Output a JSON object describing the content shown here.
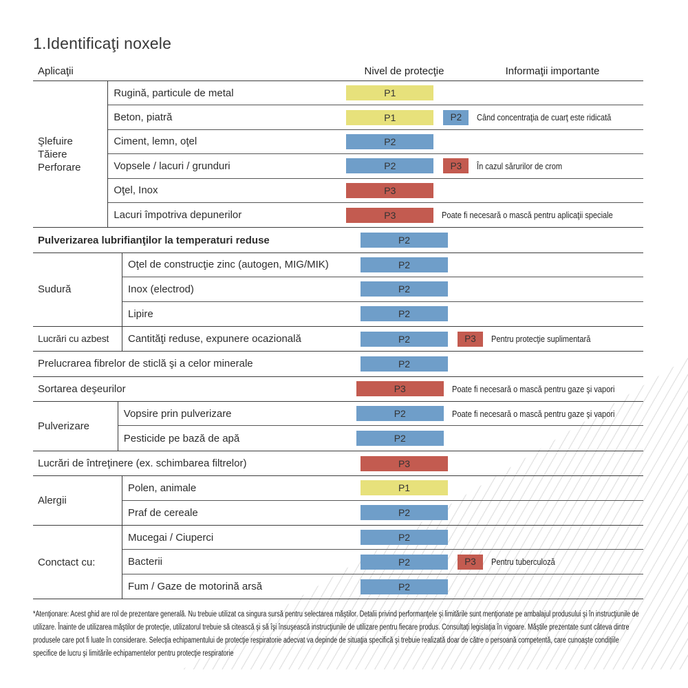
{
  "title": "1.Identificaţi noxele",
  "header": {
    "applications": "Aplicaţii",
    "protection": "Nivel de protecţie",
    "info": "Informaţii importante"
  },
  "colors": {
    "p1_yellow": "#e7e17b",
    "p2_blue": "#6f9ec9",
    "p3_red": "#c35b50"
  },
  "groups": [
    {
      "category": "Şlefuire\nTăiere\nPerforare"
    },
    {
      "category": "Sudură"
    },
    {
      "category": "Lucrări cu azbest"
    },
    {
      "category": "Pulverizare"
    },
    {
      "category": "Alergii"
    },
    {
      "category": "Conctact cu:"
    }
  ],
  "rows": [
    {
      "label": "Rugină, particule de metal",
      "badge": {
        "level": "P1",
        "label": "P1"
      }
    },
    {
      "label": "Beton, piatră",
      "badge": {
        "level": "P1",
        "label": "P1"
      },
      "badge2": {
        "level": "P2",
        "label": "P2"
      },
      "info": "Când concentraţia de cuarţ este ridicată"
    },
    {
      "label": "Ciment, lemn, oţel",
      "badge": {
        "level": "P2",
        "label": "P2"
      }
    },
    {
      "label": "Vopsele / lacuri / grunduri",
      "badge": {
        "level": "P2",
        "label": "P2"
      },
      "badge2": {
        "level": "P3",
        "label": "P3"
      },
      "info": "În cazul sărurilor de crom"
    },
    {
      "label": "Oţel, Inox",
      "badge": {
        "level": "P3",
        "label": "P3"
      }
    },
    {
      "label": "Lacuri împotriva depunerilor",
      "badge": {
        "level": "P3",
        "label": "P3"
      },
      "info": "Poate fi necesară o mască pentru aplicaţii speciale"
    },
    {
      "label": "Pulverizarea lubrifianţilor la temperaturi reduse",
      "badge": {
        "level": "P2",
        "label": "P2"
      }
    },
    {
      "label": "Oţel de construcţie zinc (autogen, MIG/MIK)",
      "badge": {
        "level": "P2",
        "label": "P2"
      }
    },
    {
      "label": "Inox (electrod)",
      "badge": {
        "level": "P2",
        "label": "P2"
      }
    },
    {
      "label": "Lipire",
      "badge": {
        "level": "P2",
        "label": "P2"
      }
    },
    {
      "label": "Cantităţi reduse, expunere ocazională",
      "badge": {
        "level": "P2",
        "label": "P2"
      },
      "badge2": {
        "level": "P3",
        "label": "P3"
      },
      "info": "Pentru protecţie suplimentară"
    },
    {
      "label": "Prelucrarea fibrelor de sticlă şi a celor minerale",
      "badge": {
        "level": "P2",
        "label": "P2"
      }
    },
    {
      "label": "Sortarea deşeurilor",
      "badge": {
        "level": "P3",
        "label": "P3"
      },
      "info": "Poate fi necesară o mască pentru gaze şi vapori"
    },
    {
      "label": "Vopsire prin pulverizare",
      "badge": {
        "level": "P2",
        "label": "P2"
      },
      "info": "Poate fi necesară o mască pentru gaze şi vapori"
    },
    {
      "label": "Pesticide pe bază de apă",
      "badge": {
        "level": "P2",
        "label": "P2"
      }
    },
    {
      "label": "Lucrări de întreţinere (ex. schimbarea filtrelor)",
      "badge": {
        "level": "P3",
        "label": "P3"
      }
    },
    {
      "label": "Polen, animale",
      "badge": {
        "level": "P1",
        "label": "P1"
      }
    },
    {
      "label": "Praf de cereale",
      "badge": {
        "level": "P2",
        "label": "P2"
      }
    },
    {
      "label": "Mucegai / Ciuperci",
      "badge": {
        "level": "P2",
        "label": "P2"
      }
    },
    {
      "label": "Bacterii",
      "badge": {
        "level": "P2",
        "label": "P2"
      },
      "badge2": {
        "level": "P3",
        "label": "P3"
      },
      "info": "Pentru tuberculoză"
    },
    {
      "label": "Fum / Gaze de motorină arsă",
      "badge": {
        "level": "P2",
        "label": "P2"
      }
    }
  ],
  "footnote": "*Atenţionare: Acest ghid are rol de prezentare generală. Nu trebuie utilizat ca singura sursă pentru selectarea măştilor. Detalii privind performanţele şi limitările sunt menţionate pe ambalajul produsului şi în instrucţiunile de utilizare. Înainte de utilizarea măştilor de protecţie, utilizatorul trebuie să citească şi să îşi însuşească instrucţiunile de utilizare pentru fiecare produs. Consultaţi legislaţia în vigoare. Măştile prezentate sunt câteva dintre produsele care pot fi luate în considerare. Selecţia echipamentului de protecţie respiratorie adecvat va depinde de situaţia specifică şi trebuie realizată doar de către o persoană competentă, care cunoaşte condiţiile specifice de lucru şi limitările echipamentelor pentru protecţie respiratorie"
}
